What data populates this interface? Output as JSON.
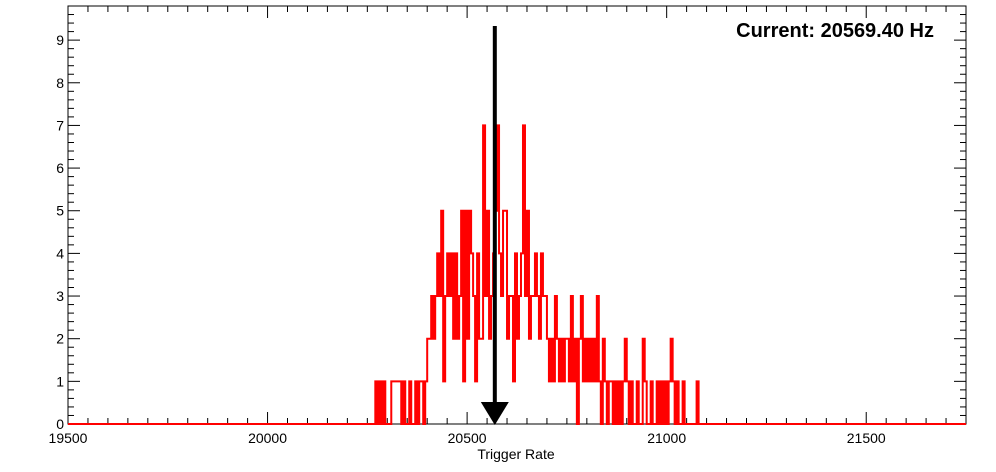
{
  "chart_data": {
    "type": "histogram",
    "xlabel": "Trigger Rate",
    "ylabel": "",
    "xlim": [
      19500,
      21750
    ],
    "ylim": [
      0,
      9.8
    ],
    "x_ticks": [
      19500,
      20000,
      20500,
      21000,
      21500
    ],
    "y_ticks": [
      0,
      1,
      2,
      3,
      4,
      5,
      6,
      7,
      8,
      9
    ],
    "x_minor_step": 50,
    "y_minor_step": 0.2,
    "bin_width": 5,
    "bins": [
      [
        20270,
        1
      ],
      [
        20275,
        0
      ],
      [
        20280,
        1
      ],
      [
        20285,
        0
      ],
      [
        20290,
        1
      ],
      [
        20295,
        0
      ],
      [
        20310,
        1
      ],
      [
        20315,
        1
      ],
      [
        20320,
        1
      ],
      [
        20325,
        1
      ],
      [
        20330,
        1
      ],
      [
        20335,
        0
      ],
      [
        20340,
        1
      ],
      [
        20345,
        0
      ],
      [
        20355,
        1
      ],
      [
        20360,
        0
      ],
      [
        20370,
        1
      ],
      [
        20375,
        0
      ],
      [
        20380,
        1
      ],
      [
        20385,
        1
      ],
      [
        20390,
        0
      ],
      [
        20395,
        1
      ],
      [
        20400,
        2
      ],
      [
        20405,
        2
      ],
      [
        20410,
        3
      ],
      [
        20415,
        2
      ],
      [
        20420,
        3
      ],
      [
        20425,
        4
      ],
      [
        20430,
        3
      ],
      [
        20435,
        5
      ],
      [
        20440,
        1
      ],
      [
        20445,
        3
      ],
      [
        20450,
        4
      ],
      [
        20455,
        3
      ],
      [
        20460,
        4
      ],
      [
        20465,
        2
      ],
      [
        20470,
        4
      ],
      [
        20475,
        2
      ],
      [
        20480,
        3
      ],
      [
        20485,
        5
      ],
      [
        20490,
        1
      ],
      [
        20495,
        5
      ],
      [
        20500,
        2
      ],
      [
        20505,
        5
      ],
      [
        20510,
        4
      ],
      [
        20515,
        3
      ],
      [
        20520,
        1
      ],
      [
        20525,
        4
      ],
      [
        20530,
        2
      ],
      [
        20535,
        2
      ],
      [
        20540,
        7
      ],
      [
        20545,
        3
      ],
      [
        20550,
        5
      ],
      [
        20555,
        2
      ],
      [
        20560,
        3
      ],
      [
        20565,
        4
      ],
      [
        20570,
        5
      ],
      [
        20575,
        7
      ],
      [
        20580,
        4
      ],
      [
        20585,
        3
      ],
      [
        20590,
        5
      ],
      [
        20595,
        5
      ],
      [
        20600,
        2
      ],
      [
        20605,
        3
      ],
      [
        20610,
        3
      ],
      [
        20615,
        1
      ],
      [
        20620,
        4
      ],
      [
        20625,
        2
      ],
      [
        20630,
        3
      ],
      [
        20635,
        4
      ],
      [
        20640,
        7
      ],
      [
        20645,
        3
      ],
      [
        20650,
        5
      ],
      [
        20655,
        2
      ],
      [
        20660,
        3
      ],
      [
        20665,
        3
      ],
      [
        20670,
        4
      ],
      [
        20675,
        3
      ],
      [
        20680,
        2
      ],
      [
        20685,
        4
      ],
      [
        20690,
        3
      ],
      [
        20695,
        3
      ],
      [
        20700,
        2
      ],
      [
        20705,
        1
      ],
      [
        20710,
        2
      ],
      [
        20715,
        1
      ],
      [
        20720,
        3
      ],
      [
        20725,
        2
      ],
      [
        20730,
        1
      ],
      [
        20735,
        2
      ],
      [
        20740,
        1
      ],
      [
        20745,
        2
      ],
      [
        20750,
        2
      ],
      [
        20755,
        1
      ],
      [
        20760,
        3
      ],
      [
        20765,
        1
      ],
      [
        20770,
        2
      ],
      [
        20775,
        0
      ],
      [
        20780,
        2
      ],
      [
        20785,
        3
      ],
      [
        20790,
        1
      ],
      [
        20795,
        2
      ],
      [
        20800,
        1
      ],
      [
        20805,
        2
      ],
      [
        20810,
        1
      ],
      [
        20815,
        2
      ],
      [
        20820,
        1
      ],
      [
        20825,
        3
      ],
      [
        20830,
        1
      ],
      [
        20835,
        0
      ],
      [
        20840,
        2
      ],
      [
        20845,
        1
      ],
      [
        20850,
        0
      ],
      [
        20855,
        1
      ],
      [
        20860,
        1
      ],
      [
        20865,
        0
      ],
      [
        20870,
        1
      ],
      [
        20875,
        0
      ],
      [
        20880,
        1
      ],
      [
        20885,
        0
      ],
      [
        20890,
        1
      ],
      [
        20895,
        2
      ],
      [
        20900,
        1
      ],
      [
        20905,
        0
      ],
      [
        20910,
        1
      ],
      [
        20915,
        0
      ],
      [
        20925,
        1
      ],
      [
        20930,
        0
      ],
      [
        20940,
        2
      ],
      [
        20945,
        1
      ],
      [
        20950,
        0
      ],
      [
        20960,
        1
      ],
      [
        20965,
        0
      ],
      [
        20975,
        1
      ],
      [
        20980,
        0
      ],
      [
        20985,
        1
      ],
      [
        20990,
        0
      ],
      [
        20995,
        1
      ],
      [
        21000,
        0
      ],
      [
        21005,
        1
      ],
      [
        21010,
        2
      ],
      [
        21015,
        1
      ],
      [
        21020,
        0
      ],
      [
        21025,
        1
      ],
      [
        21030,
        0
      ],
      [
        21040,
        1
      ],
      [
        21045,
        0
      ],
      [
        21075,
        1
      ],
      [
        21080,
        0
      ]
    ],
    "series_color": "#ff0000",
    "marker": {
      "value": 20569.4,
      "color": "#000000"
    },
    "annotation": "Current: 20569.40 Hz",
    "grid": false
  }
}
